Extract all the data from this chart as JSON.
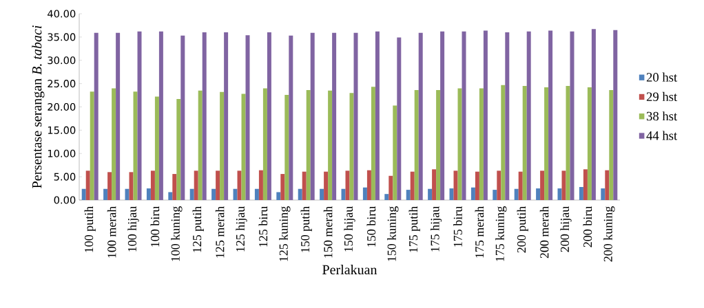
{
  "chart_data": {
    "type": "bar",
    "xlabel": "Perlakuan",
    "ylabel": "Persentase serangan *B. tabaci*",
    "categories": [
      "100 putih",
      "100 merah",
      "100 hijau",
      "100 biru",
      "100 kuning",
      "125 putih",
      "125 merah",
      "125 hijau",
      "125 biru",
      "125 kuning",
      "150 putih",
      "150 merah",
      "150 hijau",
      "150 biru",
      "150 kuning",
      "175 putih",
      "175 hijau",
      "175 biru",
      "175 merah",
      "175 kuning",
      "200 putih",
      "200 merah",
      "200 hijau",
      "200 biru",
      "200 kuning"
    ],
    "series": [
      {
        "name": "20 hst",
        "color": "#4f81bd",
        "values": [
          2.4,
          2.4,
          2.4,
          2.5,
          1.7,
          2.4,
          2.4,
          2.4,
          2.4,
          1.7,
          2.4,
          2.4,
          2.4,
          2.7,
          1.3,
          2.2,
          2.4,
          2.5,
          2.7,
          2.2,
          2.4,
          2.5,
          2.5,
          2.8,
          2.5
        ]
      },
      {
        "name": "29 hst",
        "color": "#c0504d",
        "values": [
          6.3,
          6.0,
          6.0,
          6.3,
          5.6,
          6.3,
          6.3,
          6.3,
          6.4,
          5.6,
          6.1,
          6.1,
          6.3,
          6.4,
          5.2,
          6.1,
          6.6,
          6.3,
          6.1,
          6.3,
          6.1,
          6.3,
          6.3,
          6.6,
          6.4
        ]
      },
      {
        "name": "38 hst",
        "color": "#9bbb59",
        "values": [
          23.3,
          24.0,
          23.3,
          22.2,
          21.7,
          23.5,
          23.2,
          22.8,
          24.0,
          22.6,
          23.6,
          23.5,
          23.0,
          24.3,
          20.3,
          23.6,
          23.6,
          24.0,
          24.0,
          24.7,
          24.5,
          24.2,
          24.5,
          24.2,
          23.6
        ]
      },
      {
        "name": "44 hst",
        "color": "#8064a2",
        "values": [
          35.9,
          35.9,
          36.2,
          36.2,
          35.3,
          36.0,
          36.0,
          35.4,
          36.0,
          35.3,
          35.9,
          35.9,
          35.9,
          36.2,
          34.9,
          35.9,
          36.2,
          36.2,
          36.4,
          36.0,
          36.2,
          36.4,
          36.2,
          36.7,
          36.5
        ]
      }
    ],
    "ylim": [
      0,
      40
    ],
    "yticks": [
      {
        "value": 0,
        "label": "0.00"
      },
      {
        "value": 5,
        "label": "5.00"
      },
      {
        "value": 10,
        "label": "10.00"
      },
      {
        "value": 15,
        "label": "15.00"
      },
      {
        "value": 20,
        "label": "20.00"
      },
      {
        "value": 25,
        "label": "25.00"
      },
      {
        "value": 30,
        "label": "30.00"
      },
      {
        "value": 35,
        "label": "35.00"
      },
      {
        "value": 40,
        "label": "40.00"
      }
    ],
    "grid": false,
    "legend": "right"
  }
}
